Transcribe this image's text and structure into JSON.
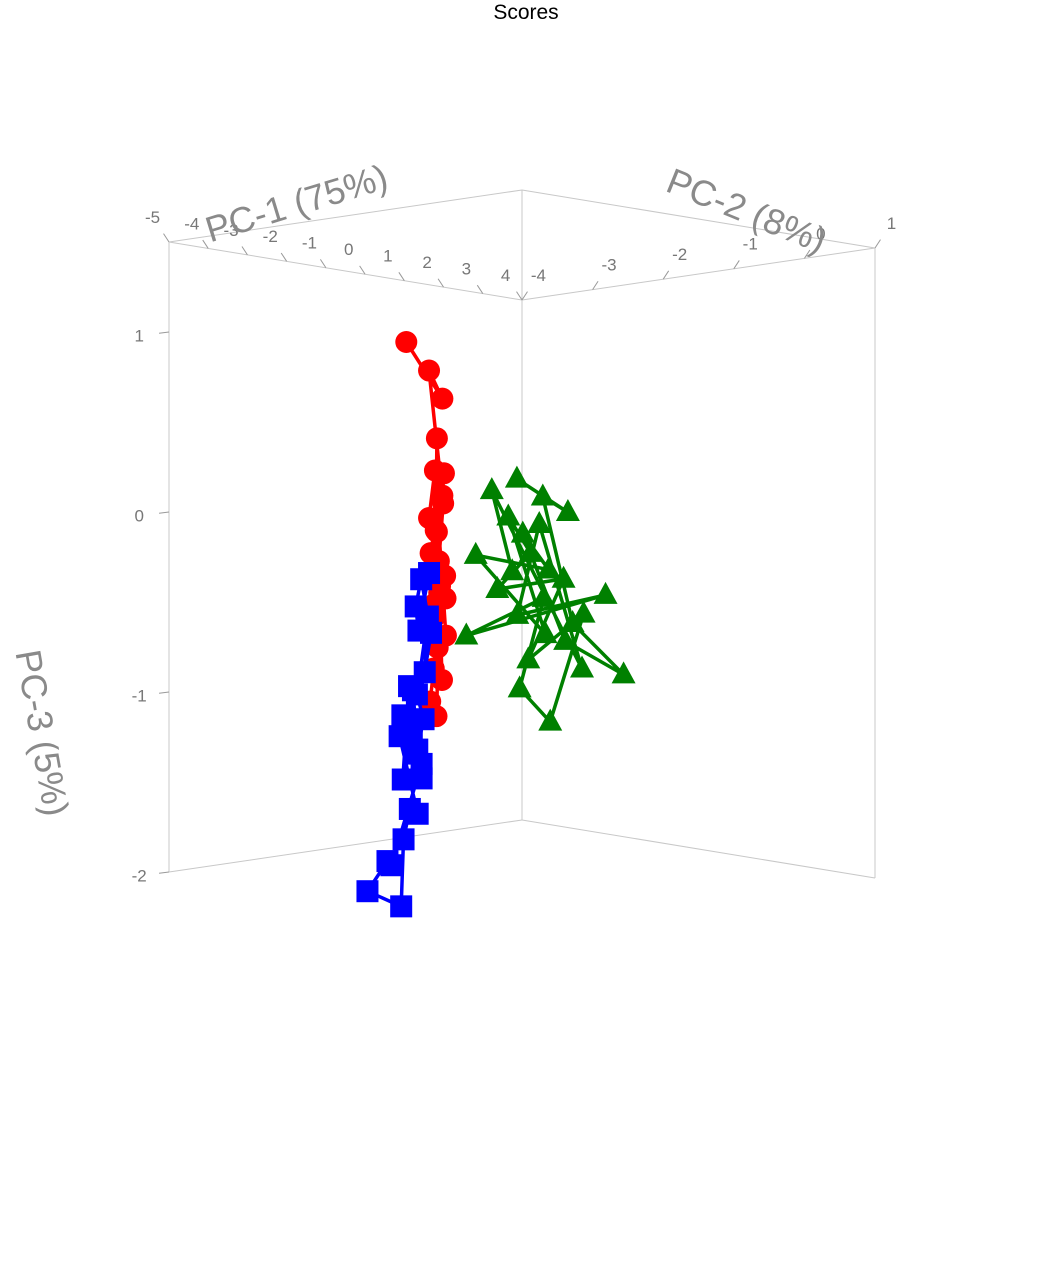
{
  "chart_data": {
    "type": "scatter",
    "projection": "3d-isometric",
    "title": "Scores",
    "axes": {
      "x": {
        "label": "PC-1 (75%)",
        "range": [
          -5,
          4
        ],
        "ticks": [
          -5,
          -4,
          -3,
          -2,
          -1,
          0,
          1,
          2,
          3,
          4
        ]
      },
      "y": {
        "label": "PC-2 (8%)",
        "range": [
          -4,
          1
        ],
        "ticks": [
          -4,
          -3,
          -2,
          -1,
          0,
          1
        ]
      },
      "z": {
        "label": "PC-3 (5%)",
        "range": [
          -2,
          1.5
        ],
        "ticks": [
          -2,
          -1,
          0,
          1
        ]
      }
    },
    "grid": true,
    "connected": true,
    "series": [
      {
        "color": "#ff0000",
        "marker": "circle",
        "points": [
          [
            0.15,
            -3.5,
            1.1
          ],
          [
            0.8,
            -3.35,
            0.8
          ],
          [
            0.55,
            -3.4,
            0.95
          ],
          [
            -0.1,
            -2.85,
            0.2
          ],
          [
            0.3,
            -3.05,
            0.35
          ],
          [
            0.05,
            -3.1,
            -0.1
          ],
          [
            0.45,
            -3.25,
            0.05
          ],
          [
            0.6,
            -3.2,
            -0.2
          ],
          [
            -0.2,
            -2.9,
            -0.4
          ],
          [
            0.25,
            -3.0,
            -0.35
          ],
          [
            0.1,
            -3.15,
            0.1
          ],
          [
            0.7,
            -3.4,
            0.4
          ],
          [
            0.35,
            -3.05,
            -0.55
          ],
          [
            0.5,
            -3.25,
            -0.6
          ],
          [
            -0.05,
            -3.0,
            -0.75
          ],
          [
            0.4,
            -3.3,
            -0.9
          ],
          [
            0.2,
            -3.1,
            -1.0
          ],
          [
            0.65,
            -3.3,
            -0.25
          ],
          [
            0.3,
            -3.15,
            0.55
          ],
          [
            0.0,
            -3.0,
            -0.15
          ],
          [
            0.55,
            -3.2,
            0.2
          ],
          [
            0.15,
            -3.1,
            -0.45
          ],
          [
            0.45,
            -3.2,
            -0.3
          ],
          [
            0.25,
            -3.05,
            -0.8
          ],
          [
            0.8,
            -3.4,
            -0.1
          ],
          [
            -0.15,
            -2.9,
            0.0
          ]
        ]
      },
      {
        "color": "#008000",
        "marker": "triangle",
        "points": [
          [
            0.9,
            -2.35,
            0.3
          ],
          [
            1.3,
            -1.85,
            0.1
          ],
          [
            1.2,
            -2.15,
            0.2
          ],
          [
            1.6,
            -1.95,
            -0.5
          ],
          [
            2.0,
            -1.45,
            -0.8
          ],
          [
            1.5,
            -2.0,
            -0.6
          ],
          [
            1.05,
            -2.35,
            0.0
          ],
          [
            1.35,
            -2.15,
            -0.2
          ],
          [
            0.75,
            -2.85,
            -0.1
          ],
          [
            1.45,
            -2.25,
            -0.55
          ],
          [
            0.95,
            -2.5,
            0.1
          ],
          [
            1.25,
            -2.35,
            -0.1
          ],
          [
            0.85,
            -2.6,
            -0.3
          ],
          [
            1.55,
            -2.05,
            -0.25
          ],
          [
            1.1,
            -2.3,
            -0.7
          ],
          [
            1.7,
            -1.85,
            -0.45
          ],
          [
            1.3,
            -2.1,
            -1.05
          ],
          [
            1.15,
            -2.45,
            -0.85
          ],
          [
            1.4,
            -2.25,
            -0.35
          ],
          [
            0.6,
            -2.9,
            -0.55
          ],
          [
            1.9,
            -1.65,
            -0.35
          ],
          [
            1.0,
            -2.4,
            -0.45
          ],
          [
            1.2,
            -2.2,
            0.05
          ],
          [
            1.75,
            -1.9,
            -0.75
          ],
          [
            0.8,
            -2.65,
            0.25
          ],
          [
            1.05,
            -2.5,
            -0.2
          ]
        ]
      },
      {
        "color": "#0000ff",
        "marker": "square",
        "points": [
          [
            -3.5,
            -1.15,
            -0.45
          ],
          [
            -2.6,
            -1.8,
            -0.7
          ],
          [
            -2.4,
            -1.95,
            -0.55
          ],
          [
            -2.35,
            -1.9,
            -0.4
          ],
          [
            -3.0,
            -1.4,
            -0.75
          ],
          [
            -2.8,
            -1.6,
            -0.95
          ],
          [
            -2.9,
            -1.5,
            -0.65
          ],
          [
            -2.55,
            -1.85,
            -1.05
          ],
          [
            -2.65,
            -1.7,
            -1.2
          ],
          [
            -2.45,
            -1.9,
            -1.35
          ],
          [
            -2.2,
            -2.1,
            -1.0
          ],
          [
            -2.05,
            -2.2,
            -1.25
          ],
          [
            -1.85,
            -2.35,
            -0.95
          ],
          [
            -1.65,
            -2.55,
            -1.45
          ],
          [
            -2.25,
            -1.95,
            -1.5
          ],
          [
            -2.7,
            -1.7,
            -1.45
          ],
          [
            -1.4,
            -2.85,
            -1.9
          ],
          [
            -1.05,
            -3.1,
            -1.85
          ],
          [
            -0.3,
            -3.8,
            -1.95
          ],
          [
            -1.6,
            -2.6,
            -2.15
          ],
          [
            -1.9,
            -2.4,
            -1.8
          ],
          [
            -2.1,
            -2.2,
            -1.65
          ],
          [
            -2.35,
            -1.95,
            -1.7
          ],
          [
            -1.55,
            -2.65,
            -1.2
          ],
          [
            -1.75,
            -2.5,
            -1.1
          ],
          [
            -2.15,
            -2.1,
            -1.35
          ]
        ]
      }
    ]
  }
}
